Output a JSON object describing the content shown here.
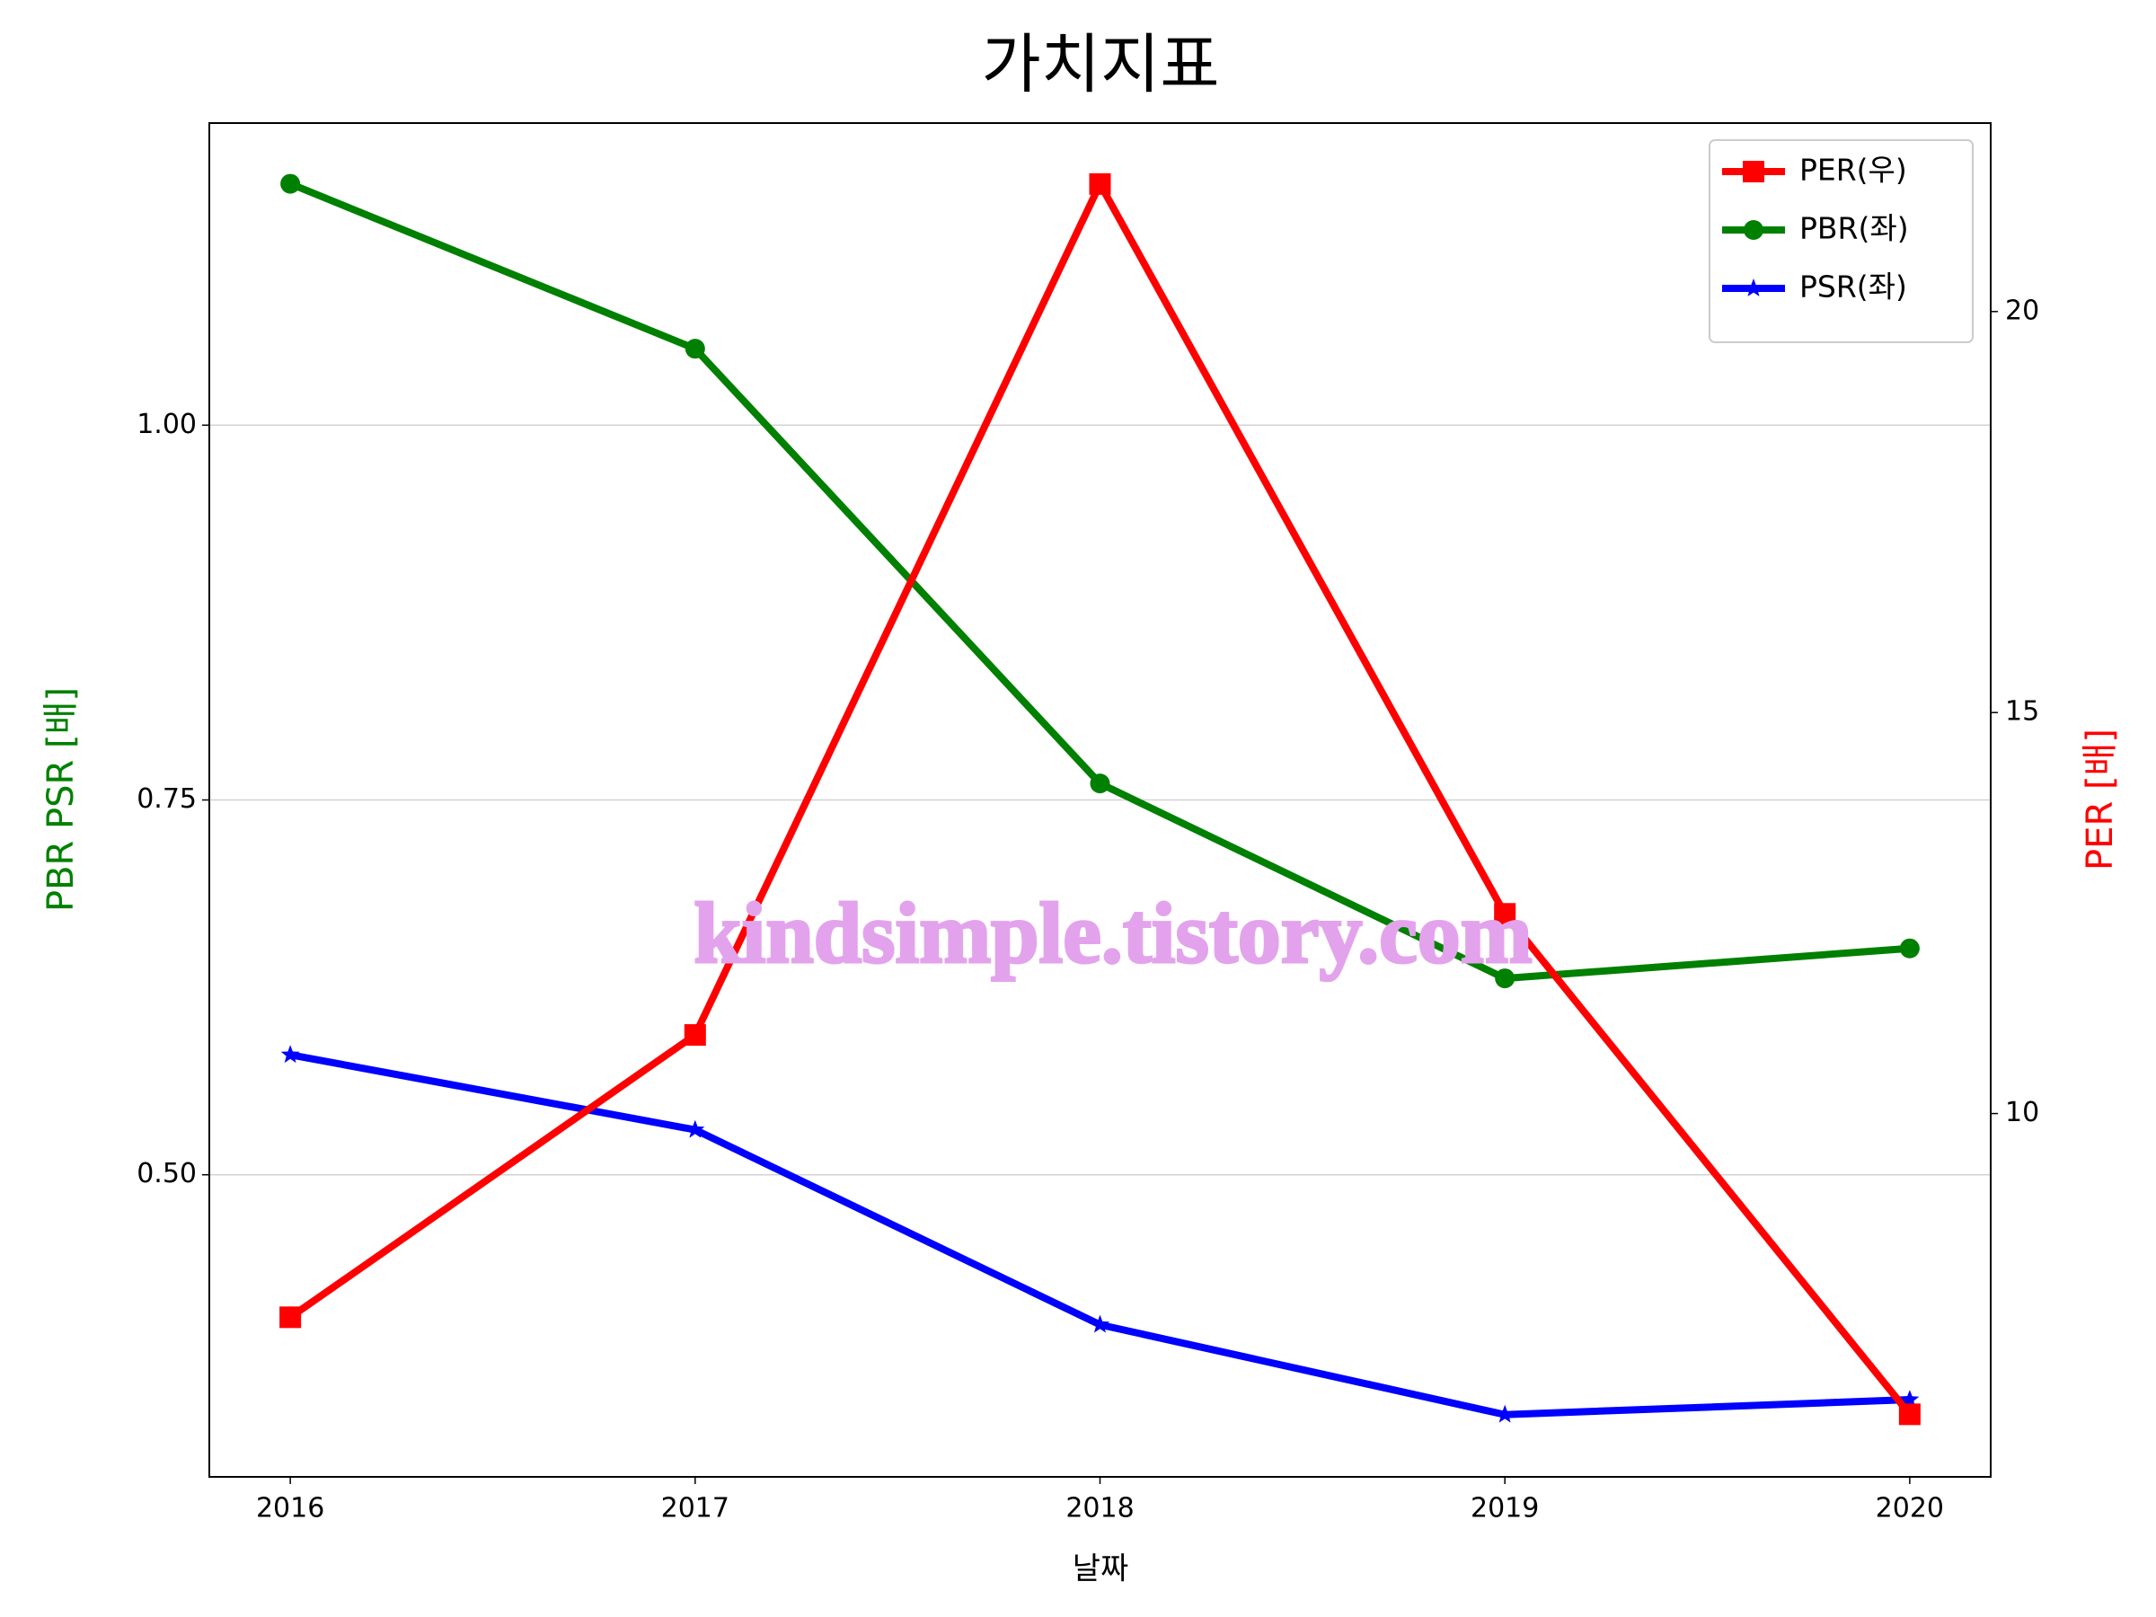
{
  "chart_data": {
    "type": "line",
    "title": "가치지표",
    "xlabel": "날짜",
    "ylabel": "PBR PSR [배]",
    "y2label": "PER [배]",
    "x": [
      2016,
      2017,
      2018,
      2019,
      2020
    ],
    "series": [
      {
        "name": "PER(우)",
        "color": "#ff0000",
        "marker": "square",
        "axis": "y2",
        "values": [
          7.46,
          10.98,
          21.59,
          12.49,
          6.25
        ]
      },
      {
        "name": "PBR(좌)",
        "color": "#008000",
        "marker": "circle",
        "values": [
          1.161,
          1.051,
          0.761,
          0.631,
          0.651
        ]
      },
      {
        "name": "PSR(좌)",
        "color": "#0000ff",
        "marker": "star",
        "values": [
          0.58,
          0.53,
          0.4,
          0.34,
          0.35
        ]
      }
    ],
    "xlim": [
      2015.8,
      2020.2
    ],
    "xticks": [
      2016,
      2017,
      2018,
      2019,
      2020
    ],
    "ylim": [
      0.2985,
      1.2015
    ],
    "yticks": [
      {
        "value": 0.5,
        "label": "0.50"
      },
      {
        "value": 0.75,
        "label": "0.75"
      },
      {
        "value": 1.0,
        "label": "1.00"
      }
    ],
    "y2lim": [
      5.47,
      22.35
    ],
    "y2ticks": [
      10,
      15,
      20
    ],
    "grid": true,
    "legend": "upper right",
    "ylabel_color": "#008000",
    "y2label_color": "#ff0000",
    "watermark": "kindsimple.tistory.com"
  }
}
